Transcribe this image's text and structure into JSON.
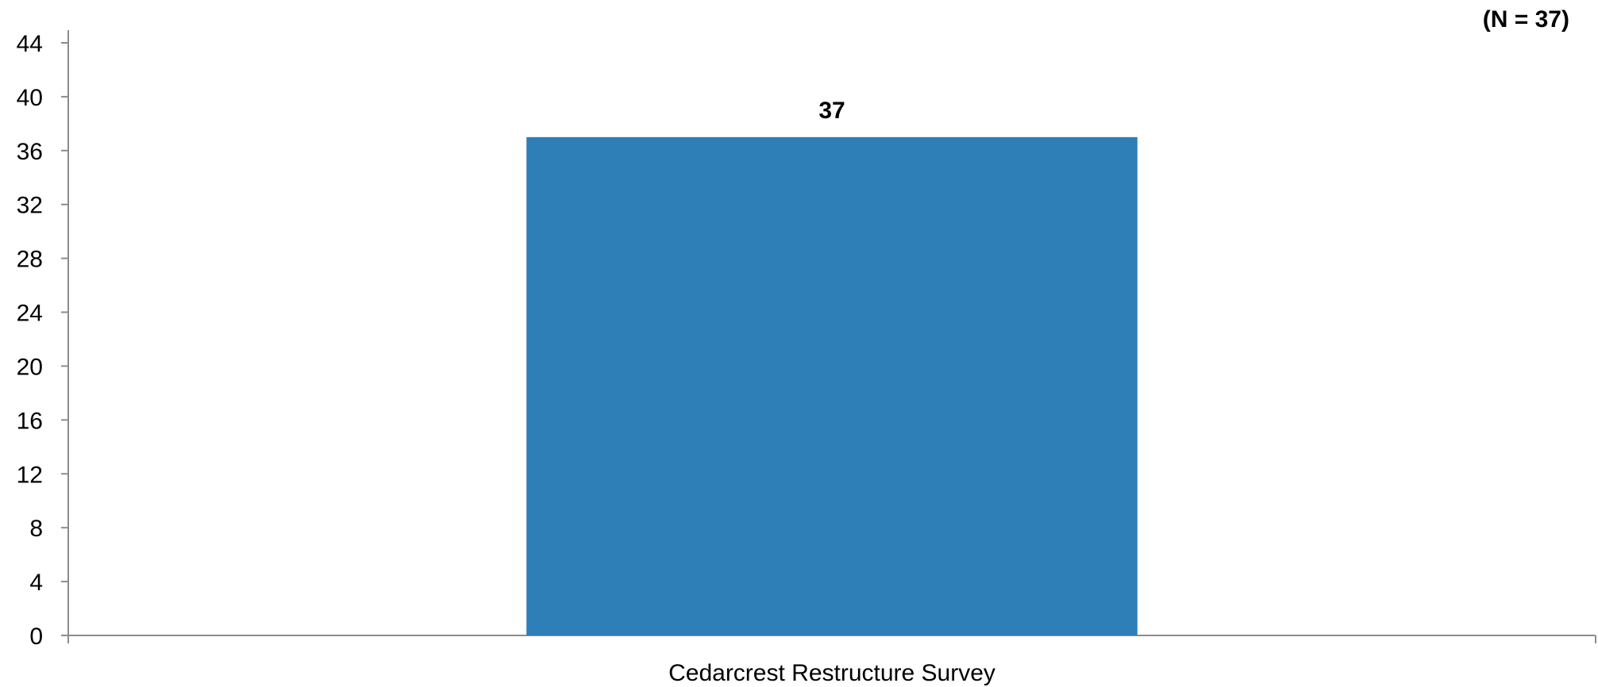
{
  "chart_data": {
    "type": "bar",
    "categories": [
      "Cedarcrest Restructure Survey"
    ],
    "values": [
      37
    ],
    "data_labels": [
      "37"
    ],
    "title": "",
    "xlabel": "",
    "ylabel": "",
    "ylim": [
      0,
      44
    ],
    "yticks": [
      "0",
      "4",
      "8",
      "12",
      "16",
      "20",
      "24",
      "28",
      "32",
      "36",
      "40",
      "44"
    ],
    "grid": false,
    "legend": "none",
    "annotation": "(N = 37)",
    "colors": {
      "bar": "#2e7eb8",
      "axis": "#8c8c8c",
      "text": "#000000"
    }
  }
}
